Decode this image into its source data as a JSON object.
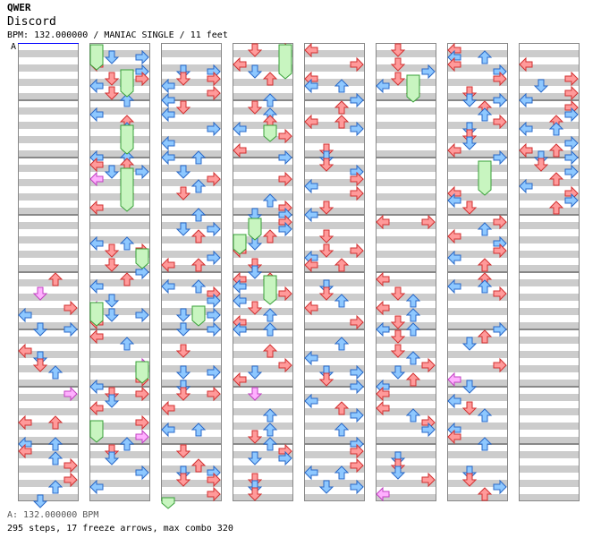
{
  "header": {
    "artist": "QWER",
    "title": "Discord",
    "info": "BPM: 132.000000 / MANIAC SINGLE / 11 feet",
    "bpm_marker": "A"
  },
  "footer": {
    "bpm_line": "A: 132.000000 BPM",
    "stats_line": "295 steps, 17 freeze arrows, max combo 320"
  },
  "colors": {
    "arrow_red": "#ff9a9a",
    "arrow_red_stroke": "#d23030",
    "arrow_blue": "#8ec8ff",
    "arrow_blue_stroke": "#2868c8",
    "arrow_pink": "#ffb0ff",
    "arrow_pink_stroke": "#c040c0",
    "freeze_fill": "#c8f5c0",
    "freeze_stroke": "#38a038",
    "stripe": "#cccccc",
    "bpm_line": "#0000ff"
  },
  "chart": {
    "columns": 8,
    "measures_per_column": 8,
    "lanes": [
      "left",
      "down",
      "up",
      "right"
    ]
  }
}
